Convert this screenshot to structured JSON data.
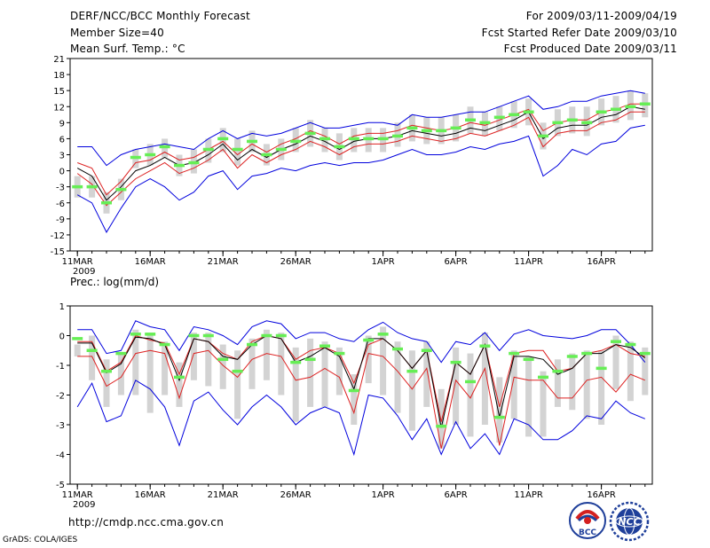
{
  "header": {
    "title": "DERF/NCC/BCC Monthly Forecast",
    "member_size": "Member Size=40",
    "variable1": "Mean Surf. Temp.: °C",
    "period": "For 2009/03/11-2009/04/19",
    "start_date": "Fcst Started Refer Date 2009/03/10",
    "produced": "Fcst Produced Date 2009/03/11"
  },
  "footer": {
    "url": "http://cmdp.ncc.cma.gov.cn",
    "credit": "GrADS: COLA/IGES",
    "logo1_text": "BCC",
    "logo2_text": "NCC"
  },
  "colors": {
    "box": "#d3d3d3",
    "obs": "#66ee55",
    "mean": "#000000",
    "spread": "#dd2222",
    "envelope": "#0000dd"
  },
  "chart_data": [
    {
      "type": "line",
      "title": "Mean Surf. Temp.: °C",
      "days": 40,
      "ylim": [
        -15,
        21
      ],
      "yticks": [
        -15,
        -12,
        -9,
        -6,
        -3,
        0,
        3,
        6,
        9,
        12,
        15,
        18,
        21
      ],
      "xticks": [
        {
          "day": 0,
          "label": "11MAR"
        },
        {
          "day": 5,
          "label": "16MAR"
        },
        {
          "day": 10,
          "label": "21MAR"
        },
        {
          "day": 15,
          "label": "26MAR"
        },
        {
          "day": 21,
          "label": "1APR"
        },
        {
          "day": 26,
          "label": "6APR"
        },
        {
          "day": 31,
          "label": "11APR"
        },
        {
          "day": 36,
          "label": "16APR"
        }
      ],
      "year_label": "2009",
      "series": [
        {
          "name": "ensemble max",
          "values": [
            4.5,
            4.5,
            1,
            3,
            4,
            4.5,
            5,
            4.5,
            4,
            6,
            7.5,
            6,
            7,
            6.5,
            7,
            8,
            9,
            8,
            8,
            8.5,
            9,
            9,
            8.5,
            10.5,
            10,
            10,
            10.5,
            11,
            11,
            12,
            13,
            14,
            11.5,
            12,
            13,
            13,
            14,
            14.5,
            15,
            14.5
          ]
        },
        {
          "name": "upper",
          "values": [
            1.5,
            0.5,
            -4.5,
            -2,
            1.5,
            2,
            3.5,
            2,
            2.5,
            4,
            5.5,
            3,
            5,
            3.5,
            5,
            6,
            7.5,
            6.5,
            5,
            6.5,
            7,
            7,
            7.5,
            8.5,
            8,
            7.5,
            8,
            9,
            8.5,
            9.5,
            10.5,
            11.5,
            7.5,
            9,
            9.5,
            9.5,
            11,
            11.5,
            12.5,
            12.5
          ]
        },
        {
          "name": "mean",
          "values": [
            0.5,
            -1,
            -5.5,
            -3,
            0,
            1,
            2.5,
            1,
            1.5,
            3,
            5,
            2,
            4,
            2.5,
            4,
            5,
            6.5,
            5.5,
            4,
            5.5,
            6,
            6,
            6.5,
            7.5,
            7,
            6.5,
            7,
            8,
            7.5,
            8.5,
            9.5,
            11,
            6,
            8,
            8.5,
            8.5,
            10,
            10.5,
            12,
            11.5
          ]
        },
        {
          "name": "lower",
          "values": [
            -0.5,
            -2.5,
            -6.5,
            -4,
            -1.5,
            0,
            1.5,
            -0.5,
            0.5,
            2,
            4,
            0.5,
            3,
            1.5,
            3,
            4,
            5.5,
            4.5,
            3,
            4.5,
            5,
            5,
            5.5,
            6.5,
            6,
            5.5,
            6,
            7,
            6.5,
            7.5,
            8.5,
            10,
            4.5,
            7,
            7.5,
            7.5,
            9,
            9.5,
            11,
            11
          ]
        },
        {
          "name": "ensemble min",
          "values": [
            -4.5,
            -6,
            -11.5,
            -7,
            -3,
            -1.5,
            -3,
            -5.5,
            -4,
            -1,
            0,
            -3.5,
            -1,
            -0.5,
            0.5,
            0,
            1,
            1.5,
            1,
            1.5,
            1.5,
            2,
            3,
            4,
            3,
            3,
            3.5,
            4.5,
            4,
            5,
            5.5,
            6.5,
            -1,
            1,
            4,
            3,
            5,
            5.5,
            8,
            8.5
          ]
        },
        {
          "name": "observation",
          "values": [
            -3,
            -3,
            -6,
            -3.5,
            2.5,
            3,
            4.5,
            1,
            1.5,
            4,
            6,
            4,
            5.5,
            3,
            4,
            5.5,
            7,
            6,
            4.5,
            6,
            6,
            6,
            6.5,
            8,
            7.5,
            7.5,
            8,
            9.5,
            9,
            10,
            10.5,
            11,
            6.5,
            9,
            9.5,
            9,
            11,
            11.5,
            12,
            12.5
          ]
        },
        {
          "name": "box upper",
          "values": [
            -1,
            -1,
            -4,
            -1.5,
            4,
            5,
            6,
            3,
            4,
            6,
            8,
            6,
            7.5,
            5,
            6,
            8,
            9.5,
            8,
            7,
            8,
            8,
            8,
            9,
            10.5,
            10,
            10,
            10.5,
            12,
            11,
            12,
            13,
            13.5,
            9,
            11.5,
            12,
            12,
            13.5,
            14,
            15,
            14.5
          ]
        },
        {
          "name": "box lower",
          "values": [
            -5,
            -5,
            -8,
            -5.5,
            0.5,
            1,
            2.5,
            -1,
            -0.5,
            1.5,
            3.5,
            1,
            3.5,
            1,
            2,
            3.5,
            4.5,
            3.5,
            2,
            3.5,
            3.5,
            3.5,
            4.5,
            5.5,
            5,
            5,
            5.5,
            7,
            6.5,
            7.5,
            8,
            8.5,
            4,
            6.5,
            7,
            6.5,
            8.5,
            9,
            9.5,
            10
          ]
        }
      ]
    },
    {
      "type": "line",
      "title": "Prec.: log(mm/d)",
      "days": 40,
      "ylim": [
        -5,
        1
      ],
      "yticks": [
        -5,
        -4,
        -3,
        -2,
        -1,
        0,
        1
      ],
      "xticks": [
        {
          "day": 0,
          "label": "11MAR"
        },
        {
          "day": 5,
          "label": "16MAR"
        },
        {
          "day": 10,
          "label": "21MAR"
        },
        {
          "day": 15,
          "label": "26MAR"
        },
        {
          "day": 21,
          "label": "1APR"
        },
        {
          "day": 26,
          "label": "6APR"
        },
        {
          "day": 31,
          "label": "11APR"
        },
        {
          "day": 36,
          "label": "16APR"
        }
      ],
      "year_label": "2009",
      "series": [
        {
          "name": "ensemble max",
          "values": [
            0.2,
            0.2,
            -0.6,
            -0.5,
            0.5,
            0.3,
            0.2,
            -0.5,
            0.3,
            0.2,
            0,
            -0.3,
            0.3,
            0.5,
            0.4,
            -0.1,
            0.1,
            0.1,
            -0.1,
            -0.2,
            0.2,
            0.45,
            0.1,
            -0.1,
            -0.2,
            -0.9,
            -0.2,
            -0.3,
            0.1,
            -0.5,
            0.05,
            0.2,
            0,
            -0.05,
            -0.1,
            0,
            0.2,
            0.2,
            -0.3,
            -0.9
          ]
        },
        {
          "name": "upper",
          "values": [
            -0.2,
            -0.2,
            -1.2,
            -0.9,
            0,
            -0.15,
            -0.25,
            -1.3,
            -0.1,
            -0.2,
            -0.6,
            -0.8,
            -0.2,
            0,
            -0.1,
            -0.8,
            -0.5,
            -0.4,
            -0.6,
            -1.6,
            -0.3,
            -0.1,
            -0.5,
            -1.1,
            -0.5,
            -2.9,
            -0.9,
            -1.3,
            -0.3,
            -2.4,
            -0.6,
            -0.5,
            -0.5,
            -1.2,
            -1.1,
            -0.6,
            -0.5,
            -0.3,
            -0.6,
            -0.7
          ]
        },
        {
          "name": "mean",
          "values": [
            -0.25,
            -0.25,
            -1.25,
            -0.95,
            -0.05,
            -0.1,
            -0.3,
            -1.5,
            -0.1,
            -0.2,
            -0.7,
            -0.8,
            -0.3,
            0,
            -0.1,
            -0.9,
            -0.7,
            -0.4,
            -0.7,
            -1.8,
            -0.1,
            -0.1,
            -0.5,
            -1.1,
            -0.5,
            -3.1,
            -0.9,
            -1.3,
            -0.3,
            -2.75,
            -0.7,
            -0.7,
            -0.8,
            -1.3,
            -1.1,
            -0.6,
            -0.6,
            -0.3,
            -0.4,
            -0.75
          ]
        },
        {
          "name": "lower",
          "values": [
            -0.7,
            -0.7,
            -1.7,
            -1.4,
            -0.6,
            -0.5,
            -0.6,
            -2.1,
            -0.6,
            -0.5,
            -1,
            -1.4,
            -0.8,
            -0.6,
            -0.7,
            -1.5,
            -1.4,
            -1.1,
            -1.4,
            -2.6,
            -0.6,
            -0.7,
            -1.2,
            -1.8,
            -1.1,
            -3.8,
            -1.5,
            -2.1,
            -1.1,
            -3.7,
            -1.4,
            -1.5,
            -1.5,
            -2.1,
            -2.1,
            -1.5,
            -1.4,
            -1.9,
            -1.3,
            -1.5
          ]
        },
        {
          "name": "ensemble min",
          "values": [
            -2.4,
            -1.6,
            -2.9,
            -2.7,
            -1.5,
            -1.8,
            -2.4,
            -3.7,
            -2.2,
            -1.9,
            -2.5,
            -3.0,
            -2.4,
            -2,
            -2.4,
            -3.0,
            -2.6,
            -2.4,
            -2.6,
            -4.0,
            -2.0,
            -2.1,
            -2.7,
            -3.5,
            -2.8,
            -4.0,
            -2.9,
            -3.8,
            -3.3,
            -4.0,
            -2.8,
            -3.0,
            -3.5,
            -3.5,
            -3.2,
            -2.7,
            -2.8,
            -2.2,
            -2.6,
            -2.8
          ]
        },
        {
          "name": "observation",
          "values": [
            -0.1,
            -0.5,
            -1.2,
            -0.6,
            0.05,
            0.05,
            -0.3,
            -1.4,
            0,
            0,
            -0.8,
            -1.2,
            -0.3,
            0,
            0,
            -0.9,
            -0.8,
            -0.35,
            -0.6,
            -1.85,
            -0.15,
            0.05,
            -0.45,
            -1.2,
            -0.5,
            -3.05,
            -0.9,
            -1.55,
            -0.35,
            -2.75,
            -0.6,
            -0.8,
            -1.4,
            -1.2,
            -0.7,
            -0.6,
            -1.1,
            -0.2,
            -0.3,
            -0.6
          ]
        },
        {
          "name": "box upper",
          "values": [
            -0.3,
            0,
            -0.8,
            -0.6,
            0.2,
            0.1,
            -0.2,
            -0.9,
            0.1,
            0.1,
            -0.3,
            -0.5,
            -0.1,
            0.2,
            0.1,
            -0.4,
            -0.1,
            -0.2,
            -0.4,
            -1.3,
            0,
            0.3,
            -0.2,
            -0.5,
            -0.2,
            -1.8,
            -0.4,
            -0.6,
            0.1,
            -1.4,
            -0.5,
            -0.7,
            -1.2,
            -0.8,
            -0.6,
            -0.5,
            -0.5,
            0,
            -0.2,
            -0.4
          ]
        },
        {
          "name": "box lower",
          "values": [
            -0.7,
            -1.5,
            -2.4,
            -2.0,
            -2.0,
            -2.6,
            -2.0,
            -2.4,
            -1.5,
            -1.7,
            -1.8,
            -2.8,
            -1.8,
            -1.5,
            -2.0,
            -2.9,
            -2.4,
            -2.4,
            -2.0,
            -3.0,
            -1.6,
            -2.0,
            -2.6,
            -3.2,
            -2.4,
            -3.8,
            -3.0,
            -3.4,
            -3.0,
            -3.6,
            -2.8,
            -3.4,
            -3.4,
            -2.4,
            -2.5,
            -2.8,
            -3.0,
            -1.8,
            -2.2,
            -2.0
          ]
        }
      ]
    }
  ]
}
